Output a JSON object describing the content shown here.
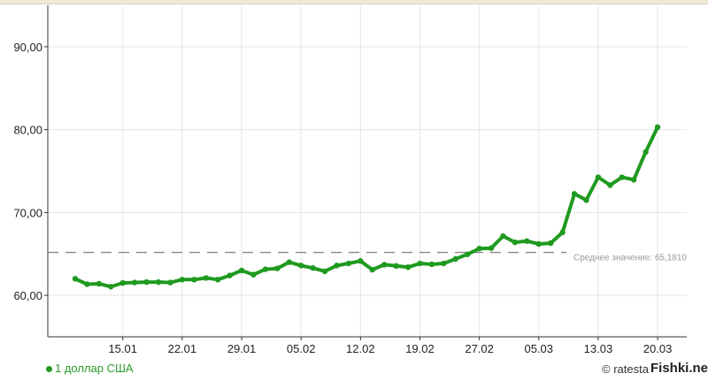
{
  "chart_data": {
    "type": "line",
    "title": "",
    "xlabel": "",
    "ylabel": "",
    "ylim": [
      55,
      95
    ],
    "yticks": [
      60,
      70,
      80,
      90
    ],
    "ytick_labels": [
      "60,00",
      "70,00",
      "80,00",
      "90,00"
    ],
    "xtick_labels": [
      "15.01",
      "22.01",
      "29.01",
      "05.02",
      "12.02",
      "19.02",
      "27.02",
      "05.03",
      "13.03",
      "20.03"
    ],
    "xtick_point_index": [
      4,
      9,
      14,
      19,
      24,
      29,
      34,
      39,
      44,
      49
    ],
    "grid": true,
    "legend_position": "bottom-left",
    "series": [
      {
        "name": "1 доллар США",
        "color": "#1f9a1f",
        "values": [
          62.0,
          61.35,
          61.4,
          61.05,
          61.5,
          61.55,
          61.6,
          61.6,
          61.55,
          61.9,
          61.9,
          62.1,
          61.9,
          62.4,
          63.0,
          62.5,
          63.15,
          63.25,
          64.0,
          63.6,
          63.3,
          62.9,
          63.6,
          63.85,
          64.15,
          63.1,
          63.7,
          63.55,
          63.4,
          63.85,
          63.75,
          63.85,
          64.4,
          64.95,
          65.65,
          65.7,
          67.15,
          66.4,
          66.55,
          66.2,
          66.3,
          67.6,
          72.25,
          71.5,
          74.25,
          73.3,
          74.25,
          73.95,
          77.3,
          80.3
        ]
      }
    ],
    "average": {
      "value": 65.181,
      "label": "Среднее значение: 65,1810",
      "color": "#888888"
    }
  },
  "legend": {
    "label": "1 доллар США"
  },
  "footer": {
    "copyright": "© ratesta",
    "watermark": "Fishki.net"
  }
}
